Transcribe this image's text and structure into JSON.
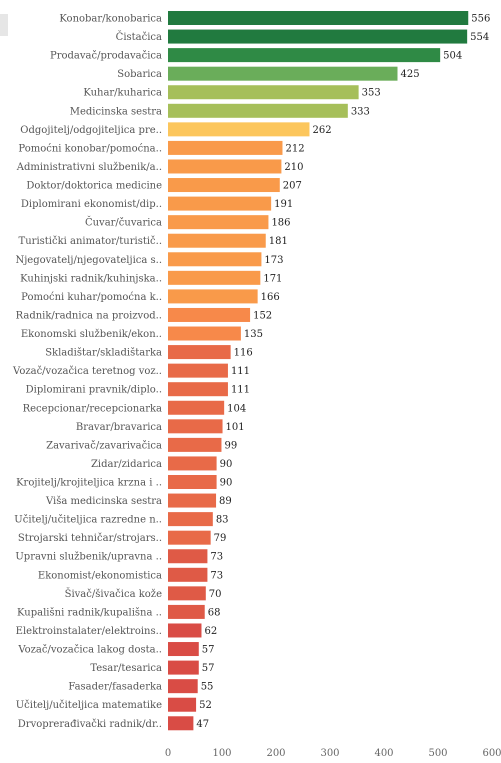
{
  "chart_data": {
    "type": "bar",
    "orientation": "horizontal",
    "categories": [
      "Konobar/konobarica",
      "Čistačica",
      "Prodavač/prodavačica",
      "Sobarica",
      "Kuhar/kuharica",
      "Medicinska sestra",
      "Odgojitelj/odgojiteljica pre..",
      "Pomoćni konobar/pomoćna..",
      "Administrativni službenik/a..",
      "Doktor/doktorica medicine",
      "Diplomirani ekonomist/dip..",
      "Čuvar/čuvarica",
      "Turistički animator/turistič..",
      "Njegovatelj/njegovateljica s..",
      "Kuhinjski radnik/kuhinjska..",
      "Pomoćni kuhar/pomoćna k..",
      "Radnik/radnica na proizvod..",
      "Ekonomski službenik/ekon..",
      "Skladištar/skladištarka",
      "Vozač/vozačica teretnog voz..",
      "Diplomirani pravnik/diplo..",
      "Recepcionar/recepcionarka",
      "Bravar/bravarica",
      "Zavarivač/zavarivačica",
      "Zidar/zidarica",
      "Krojitelj/krojiteljica krzna i ..",
      "Viša medicinska sestra",
      "Učitelj/učiteljica razredne n..",
      "Strojarski tehničar/strojars..",
      "Upravni službenik/upravna ..",
      "Ekonomist/ekonomistica",
      "Šivač/šivačica kože",
      "Kupališni radnik/kupališna ..",
      "Elektroinstalater/elektroins..",
      "Vozač/vozačica lakog dosta..",
      "Tesar/tesarica",
      "Fasader/fasaderka",
      "Učitelj/učiteljica matematike",
      "Drvoprerađivački radnik/dr.."
    ],
    "values": [
      556,
      554,
      504,
      425,
      353,
      333,
      262,
      212,
      210,
      207,
      191,
      186,
      181,
      173,
      171,
      166,
      152,
      135,
      116,
      111,
      111,
      104,
      101,
      99,
      90,
      90,
      89,
      83,
      79,
      73,
      73,
      70,
      68,
      62,
      57,
      57,
      55,
      52,
      47
    ],
    "value_labels": [
      "556",
      "554",
      "504",
      "425",
      "353",
      "333",
      "262",
      "212",
      "210",
      "207",
      "191",
      "186",
      "181",
      "173",
      "171",
      "166",
      "152",
      "135",
      "116",
      "111",
      "111",
      "104",
      "101",
      "99",
      "90",
      "90",
      "89",
      "83",
      "79",
      "73",
      "73",
      "70",
      "68",
      "62",
      "57",
      "57",
      "55",
      "52",
      "47"
    ],
    "colors": [
      "#217a3f",
      "#217a3f",
      "#2f8a45",
      "#6aad5a",
      "#a6bf5a",
      "#a6bf5a",
      "#fcc65c",
      "#f99a4a",
      "#f99a4a",
      "#f99a4a",
      "#f99a4a",
      "#f99a4a",
      "#f99a4a",
      "#f99a4a",
      "#f99a4a",
      "#f99a4a",
      "#f7894a",
      "#f7894a",
      "#e86a48",
      "#e86a48",
      "#e86a48",
      "#e86a48",
      "#e86a48",
      "#e86a48",
      "#e86a48",
      "#e86a48",
      "#e86a48",
      "#e86a48",
      "#e86a48",
      "#df5a46",
      "#df5a46",
      "#df5a46",
      "#df5a46",
      "#d94c45",
      "#d94c45",
      "#d94c45",
      "#d94c45",
      "#d94c45",
      "#d94c45"
    ],
    "xlim": [
      0,
      600
    ],
    "x_ticks": [
      "0",
      "100",
      "200",
      "300",
      "400",
      "500",
      "600"
    ],
    "grid": false,
    "title": "",
    "xlabel": "",
    "ylabel": ""
  }
}
